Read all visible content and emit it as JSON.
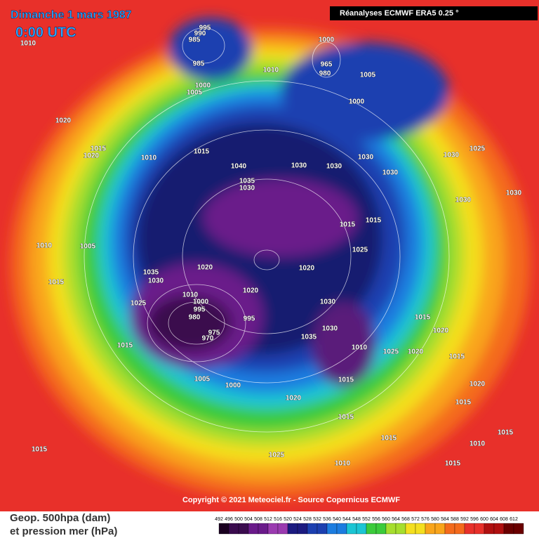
{
  "header": {
    "date": "Dimanche 1 mars 1987",
    "time": "0:00 UTC",
    "source": "Réanalyses ECMWF ERA5 0.25 °"
  },
  "copyright": "Copyright © 2021 Meteociel.fr - Source Copernicus ECMWF",
  "legend": {
    "line1": "Geop. 500hpa (dam)",
    "line2": "et pression mer (hPa)"
  },
  "colorbar": {
    "ticks": [
      492,
      496,
      500,
      504,
      508,
      512,
      516,
      520,
      524,
      528,
      532,
      536,
      540,
      544,
      548,
      552,
      556,
      560,
      564,
      568,
      572,
      576,
      580,
      584,
      588,
      592,
      596,
      600,
      604,
      608,
      612
    ]
  },
  "isobar_labels": [
    "995",
    "990",
    "985",
    "985",
    "1010",
    "1010",
    "1000",
    "1005",
    "1000",
    "965",
    "980",
    "1005",
    "1000",
    "1020",
    "1015",
    "1020",
    "1010",
    "1015",
    "1040",
    "1030",
    "1030",
    "1030",
    "1030",
    "1030",
    "1025",
    "1035",
    "1030",
    "1010",
    "1005",
    "1015",
    "1035",
    "1030",
    "1020",
    "1025",
    "1010",
    "1000",
    "995",
    "980",
    "975",
    "970",
    "1015",
    "1005",
    "1000",
    "995",
    "1020",
    "1020",
    "1030",
    "1035",
    "1030",
    "1010",
    "1015",
    "1025",
    "1020",
    "1015",
    "1020",
    "1020",
    "1015",
    "1015",
    "1010",
    "1025",
    "1015",
    "1025",
    "1015",
    "1015",
    "1030",
    "1030",
    "1015",
    "1020",
    "1015",
    "1010",
    "1015",
    "1015"
  ]
}
